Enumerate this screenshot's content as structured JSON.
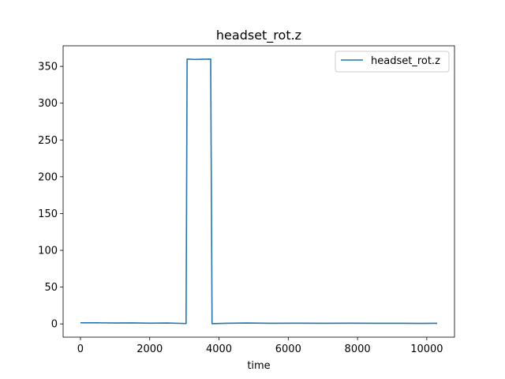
{
  "chart_data": {
    "type": "line",
    "title": "headset_rot.z",
    "xlabel": "time",
    "ylabel": "",
    "xlim": [
      -500,
      10800
    ],
    "ylim": [
      -18,
      378
    ],
    "xticks": [
      0,
      2000,
      4000,
      6000,
      8000,
      10000
    ],
    "yticks": [
      0,
      50,
      100,
      150,
      200,
      250,
      300,
      350
    ],
    "grid": false,
    "legend": {
      "position": "top-right",
      "entries": [
        "headset_rot.z"
      ]
    },
    "series": [
      {
        "name": "headset_rot.z",
        "color": "#1f77b4",
        "x": [
          0,
          500,
          1000,
          1500,
          2000,
          2500,
          3050,
          3080,
          3300,
          3500,
          3760,
          3800,
          4200,
          4800,
          5500,
          6200,
          7000,
          7800,
          8500,
          9200,
          9800,
          10300
        ],
        "y": [
          1.5,
          1.5,
          1.2,
          1.4,
          1.0,
          1.2,
          0.5,
          360,
          359.5,
          359.7,
          360,
          0.3,
          0.8,
          1.2,
          0.8,
          1.0,
          0.9,
          1.0,
          0.8,
          0.9,
          0.7,
          0.8
        ]
      }
    ]
  }
}
